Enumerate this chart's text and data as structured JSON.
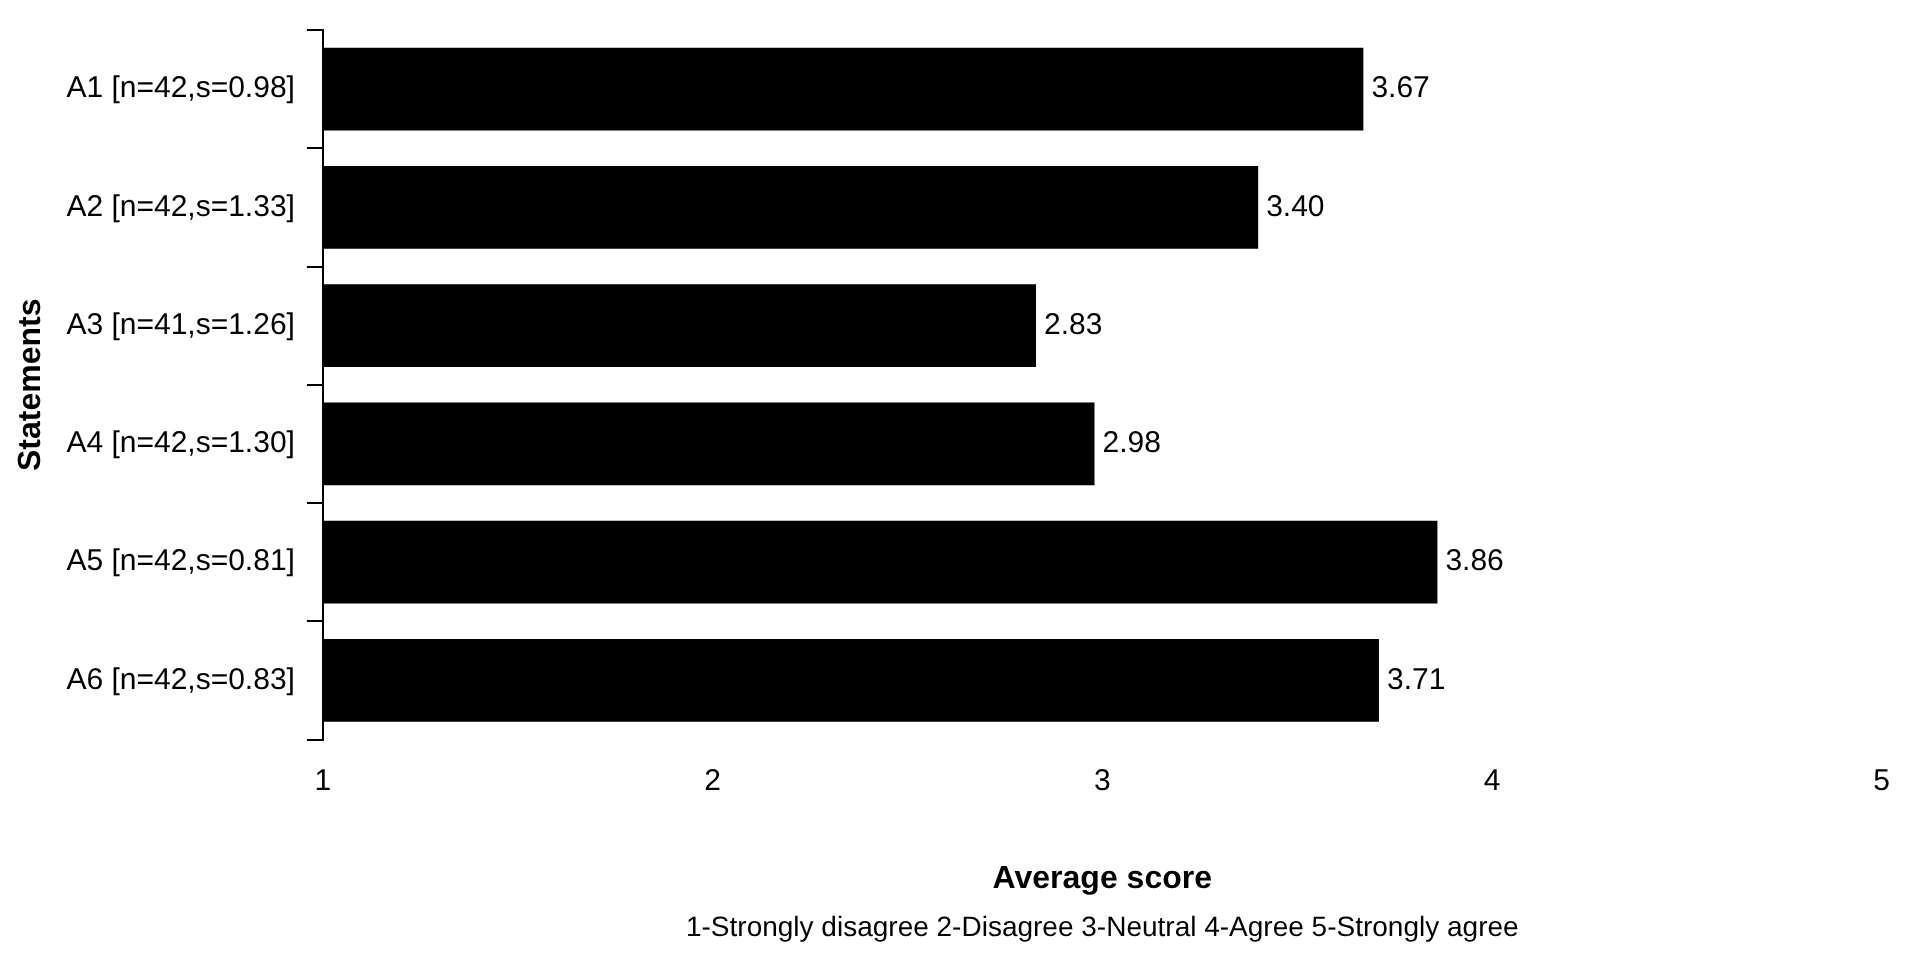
{
  "chart_data": {
    "type": "bar",
    "orientation": "horizontal",
    "categories": [
      "A1 [n=42,s=0.98]",
      "A2 [n=42,s=1.33]",
      "A3 [n=41,s=1.26]",
      "A4 [n=42,s=1.30]",
      "A5 [n=42,s=0.81]",
      "A6 [n=42,s=0.83]"
    ],
    "values": [
      3.67,
      3.4,
      2.83,
      2.98,
      3.86,
      3.71
    ],
    "color": "#000000",
    "xlim": [
      1,
      5
    ],
    "xticks": [
      1,
      2,
      3,
      4,
      5
    ],
    "xlabel": "Average score",
    "ylabel": "Statements",
    "annotations": [
      "1-Strongly disagree 2-Disagree 3-Neutral 4-Agree 5-Strongly agree"
    ],
    "value_labels": [
      "3.67",
      "3.40",
      "2.83",
      "2.98",
      "3.86",
      "3.71"
    ],
    "grid": false,
    "legend": false
  }
}
